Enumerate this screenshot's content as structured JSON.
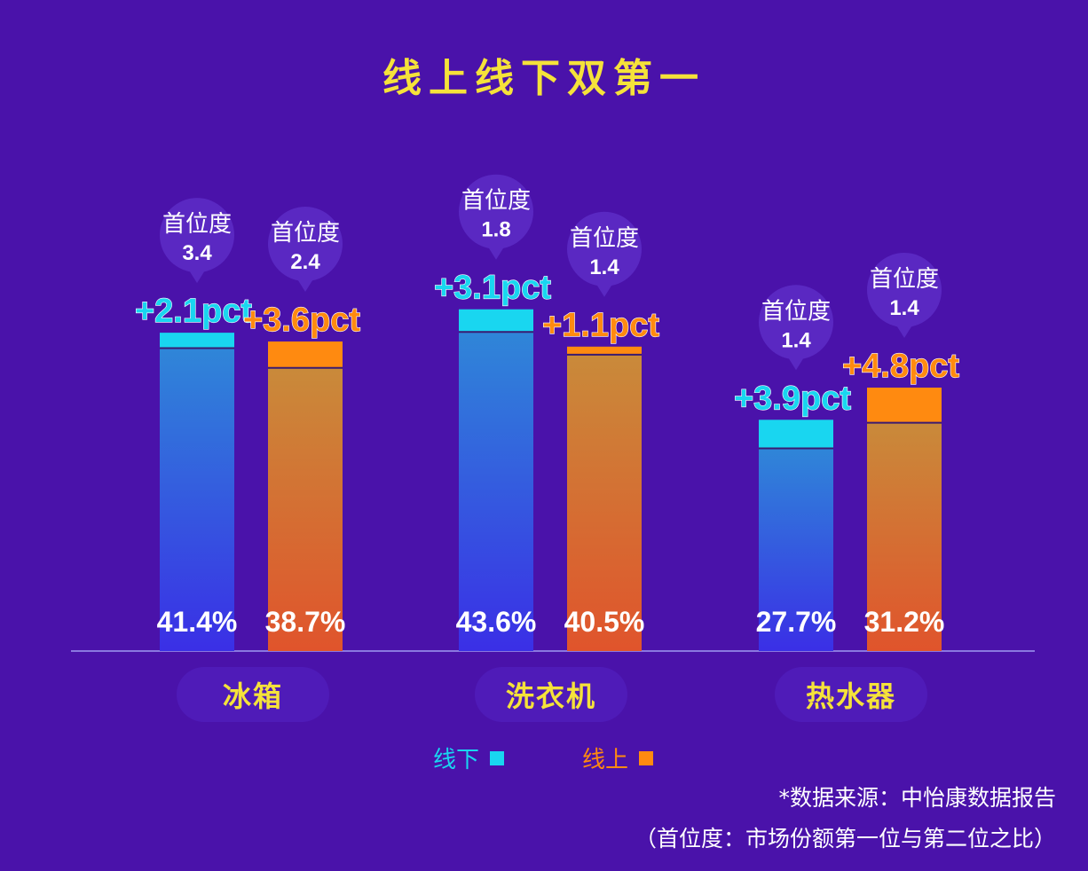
{
  "title": "线上线下双第一",
  "legend": [
    {
      "label": "线下",
      "color": "#19d6f0"
    },
    {
      "label": "线上",
      "color": "#ff8a10"
    }
  ],
  "footnotes": {
    "source": "*数据来源：中怡康数据报告",
    "definition": "（首位度：市场份额第一位与第二位之比）"
  },
  "colors": {
    "background": "#4a12aa",
    "title": "#f5e23a",
    "offline_top": "#19d6f0",
    "online_top": "#ff8a10",
    "offline_bar_top": "#2f86d8",
    "offline_bar_bottom": "#3a2fe6",
    "online_bar_top": "#c98a3a",
    "online_bar_bottom": "#e0542c"
  },
  "chart_data": {
    "type": "bar",
    "categories": [
      "冰箱",
      "洗衣机",
      "热水器"
    ],
    "series": [
      {
        "name": "线下",
        "values": [
          41.4,
          43.6,
          27.7
        ],
        "value_labels": [
          "41.4%",
          "43.6%",
          "27.7%"
        ],
        "increase": [
          2.1,
          3.1,
          3.9
        ],
        "increase_labels": [
          "+2.1pct",
          "+3.1pct",
          "+3.9pct"
        ],
        "primacy_label": "首位度",
        "primacy": [
          "3.4",
          "1.8",
          "1.4"
        ]
      },
      {
        "name": "线上",
        "values": [
          38.7,
          40.5,
          31.2
        ],
        "value_labels": [
          "38.7%",
          "40.5%",
          "31.2%"
        ],
        "increase": [
          3.6,
          1.1,
          4.8
        ],
        "increase_labels": [
          "+3.6pct",
          "+1.1pct",
          "+4.8pct"
        ],
        "primacy_label": "首位度",
        "primacy": [
          "2.4",
          "1.4",
          "1.4"
        ]
      }
    ],
    "grid": false,
    "legend_position": "bottom-center"
  }
}
